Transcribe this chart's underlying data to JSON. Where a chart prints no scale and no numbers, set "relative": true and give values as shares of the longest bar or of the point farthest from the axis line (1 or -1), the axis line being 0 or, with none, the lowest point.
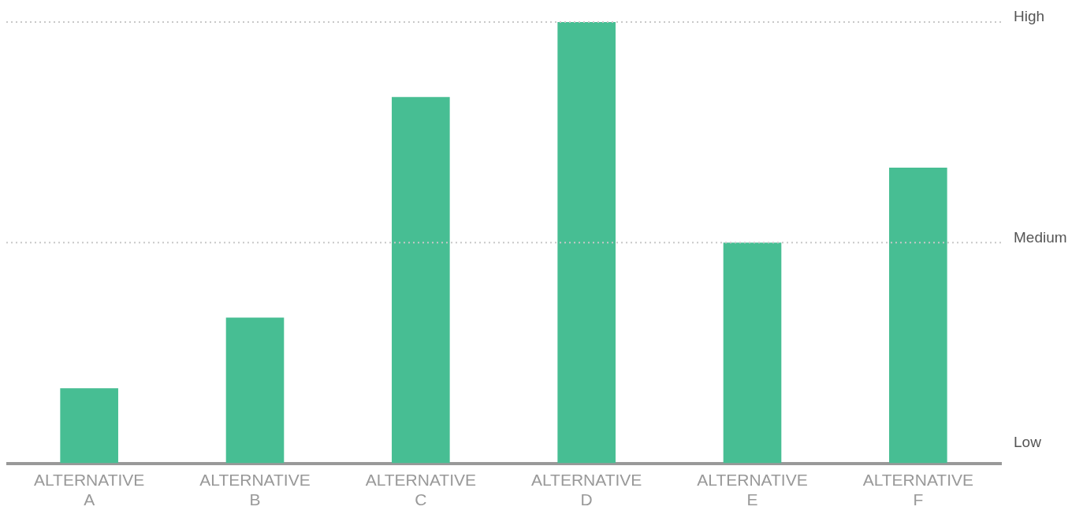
{
  "chart_data": {
    "type": "bar",
    "categories": [
      "ALTERNATIVE A",
      "ALTERNATIVE B",
      "ALTERNATIVE C",
      "ALTERNATIVE D",
      "ALTERNATIVE E",
      "ALTERNATIVE F"
    ],
    "values": [
      0.17,
      0.33,
      0.83,
      1,
      0.5,
      0.67
    ],
    "color": "#47be93",
    "relative": true,
    "ref_lines": [
      {
        "axis": "y",
        "value": 0.5,
        "label": "Medium",
        "color": "#c8c8c8",
        "line_style": "dotted"
      },
      {
        "axis": "y",
        "value": 1,
        "label": "High",
        "color": "#c8c8c8",
        "line_style": "dotted"
      }
    ],
    "annotations": [
      "Low"
    ],
    "legend": false
  }
}
